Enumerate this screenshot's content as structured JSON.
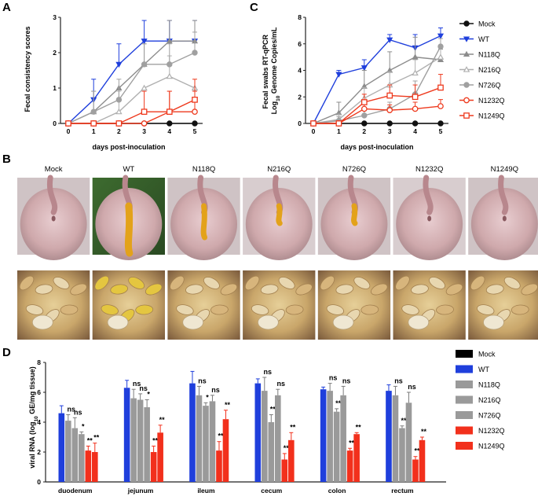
{
  "panels": {
    "A": "A",
    "B": "B",
    "C": "C",
    "D": "D"
  },
  "chart_data": [
    {
      "id": "A",
      "type": "line",
      "title": "",
      "xlabel": "days post-inoculation",
      "ylabel": "Fecal consistency scores",
      "x": [
        0,
        1,
        2,
        3,
        4,
        5
      ],
      "xlim": [
        0,
        5
      ],
      "ylim": [
        0,
        3
      ],
      "yticks": [
        0,
        1,
        2,
        3
      ],
      "series": [
        {
          "name": "Mock",
          "values": [
            0,
            0,
            0,
            0,
            0,
            0
          ],
          "err": [
            0,
            0,
            0,
            0,
            0,
            0
          ],
          "color": "#111111",
          "marker": "circle-filled"
        },
        {
          "name": "WT",
          "values": [
            0,
            0.67,
            1.67,
            2.33,
            2.33,
            2.33
          ],
          "err": [
            0,
            0.58,
            0.58,
            0.58,
            0.58,
            0.58
          ],
          "color": "#1f3fdc",
          "marker": "triangle-down"
        },
        {
          "name": "N118Q",
          "values": [
            0,
            0.33,
            1.0,
            1.67,
            2.33,
            2.33
          ],
          "err": [
            0,
            0.58,
            0.0,
            0.58,
            0.58,
            0.58
          ],
          "color": "#8c8c8c",
          "marker": "triangle-up"
        },
        {
          "name": "N216Q",
          "values": [
            0,
            0,
            0.33,
            1.0,
            1.33,
            1.0
          ],
          "err": [
            0,
            0,
            0.58,
            0.0,
            0.58,
            0.0
          ],
          "color": "#b0b0b0",
          "marker": "triangle-open"
        },
        {
          "name": "N726Q",
          "values": [
            0,
            0.33,
            0.67,
            1.67,
            1.67,
            2.0
          ],
          "err": [
            0,
            0.58,
            0.58,
            0.58,
            0.58,
            0.58
          ],
          "color": "#a0a0a0",
          "marker": "circle-filled"
        },
        {
          "name": "N1232Q",
          "values": [
            0,
            0,
            0,
            0,
            0.33,
            0.33
          ],
          "err": [
            0,
            0,
            0,
            0,
            0.58,
            0.58
          ],
          "color": "#ee3a1e",
          "marker": "circle-open"
        },
        {
          "name": "N1249Q",
          "values": [
            0,
            0,
            0,
            0.33,
            0.33,
            0.67
          ],
          "err": [
            0,
            0,
            0,
            0.58,
            0.58,
            0.58
          ],
          "color": "#ee3a1e",
          "marker": "square-open"
        }
      ]
    },
    {
      "id": "C",
      "type": "line",
      "title": "",
      "xlabel": "days post-inoculation",
      "ylabel_line1": "Fecal swabs RT-qPCR",
      "ylabel_line2_pre": "Log",
      "ylabel_line2_sub": "10",
      "ylabel_line2_post": " Genome Copies/mL",
      "x": [
        0,
        1,
        2,
        3,
        4,
        5
      ],
      "xlim": [
        0,
        5
      ],
      "ylim": [
        0,
        8
      ],
      "yticks": [
        0,
        2,
        4,
        6,
        8
      ],
      "series": [
        {
          "name": "Mock",
          "values": [
            0,
            0,
            0,
            0,
            0,
            0
          ],
          "err": [
            0,
            0,
            0,
            0,
            0,
            0
          ],
          "color": "#111111",
          "marker": "circle-filled"
        },
        {
          "name": "WT",
          "values": [
            0,
            3.7,
            4.2,
            6.3,
            5.7,
            6.6
          ],
          "err": [
            0,
            0.3,
            0.6,
            0.4,
            1.0,
            0.6
          ],
          "color": "#1f3fdc",
          "marker": "triangle-down"
        },
        {
          "name": "N118Q",
          "values": [
            0,
            0.8,
            2.8,
            4.0,
            5.0,
            4.8
          ],
          "err": [
            0,
            0.8,
            1.2,
            1.4,
            1.5,
            0.8
          ],
          "color": "#8c8c8c",
          "marker": "triangle-up"
        },
        {
          "name": "N216Q",
          "values": [
            0,
            0.3,
            1.9,
            2.9,
            3.8,
            5.0
          ],
          "err": [
            0,
            0.4,
            0.8,
            1.0,
            1.0,
            0.9
          ],
          "color": "#b0b0b0",
          "marker": "triangle-open"
        },
        {
          "name": "N726Q",
          "values": [
            0,
            0.2,
            0.6,
            1.1,
            2.2,
            5.8
          ],
          "err": [
            0,
            0.3,
            0.4,
            0.5,
            1.0,
            0.6
          ],
          "color": "#a0a0a0",
          "marker": "circle-filled"
        },
        {
          "name": "N1232Q",
          "values": [
            0,
            0,
            1.1,
            1.0,
            1.1,
            1.3
          ],
          "err": [
            0,
            0,
            0.5,
            0.4,
            0.5,
            0.5
          ],
          "color": "#ee3a1e",
          "marker": "circle-open"
        },
        {
          "name": "N1249Q",
          "values": [
            0,
            0,
            1.6,
            2.1,
            2.0,
            2.7
          ],
          "err": [
            0,
            0,
            0.6,
            0.8,
            0.9,
            1.0
          ],
          "color": "#ee3a1e",
          "marker": "square-open"
        }
      ]
    },
    {
      "id": "D",
      "type": "bar",
      "title": "",
      "ylabel_pre": "viral RNA (log",
      "ylabel_sub": "10",
      "ylabel_post": " GE/mg tissue)",
      "ylim": [
        0,
        8
      ],
      "yticks": [
        0,
        2,
        4,
        6,
        8
      ],
      "categories": [
        "duodenum",
        "jejunum",
        "ileum",
        "cecum",
        "colon",
        "rectum"
      ],
      "series": [
        {
          "name": "Mock",
          "color": "#000000",
          "values": [
            0,
            0,
            0,
            0,
            0,
            0
          ],
          "err": [
            0,
            0,
            0,
            0,
            0,
            0
          ],
          "sig": [
            "",
            "",
            "",
            "",
            "",
            ""
          ]
        },
        {
          "name": "WT",
          "color": "#1f3fdc",
          "values": [
            4.6,
            6.3,
            6.6,
            6.6,
            6.2,
            6.1
          ],
          "err": [
            0.5,
            0.5,
            0.8,
            0.3,
            0.15,
            0.4
          ],
          "sig": [
            "",
            "",
            "",
            "",
            "",
            ""
          ]
        },
        {
          "name": "N118Q",
          "color": "#9a9a9a",
          "values": [
            4.1,
            5.6,
            5.8,
            6.1,
            6.1,
            5.8
          ],
          "err": [
            0.4,
            0.6,
            0.6,
            0.9,
            0.5,
            0.6
          ],
          "sig": [
            "ns",
            "ns",
            "ns",
            "ns",
            "ns",
            "ns"
          ]
        },
        {
          "name": "N216Q",
          "color": "#9a9a9a",
          "values": [
            3.6,
            5.5,
            5.1,
            4.0,
            4.7,
            3.6
          ],
          "err": [
            0.7,
            0.4,
            0.2,
            0.5,
            0.2,
            0.15
          ],
          "sig": [
            "ns",
            "ns",
            "*",
            "**",
            "**",
            "**"
          ]
        },
        {
          "name": "N726Q",
          "color": "#9a9a9a",
          "values": [
            3.2,
            5.0,
            5.4,
            5.8,
            5.8,
            5.3
          ],
          "err": [
            0.15,
            0.5,
            0.4,
            0.4,
            0.6,
            0.7
          ],
          "sig": [
            "*",
            "*",
            "ns",
            "ns",
            "ns",
            "ns"
          ]
        },
        {
          "name": "N1232Q",
          "color": "#f2301c",
          "values": [
            2.1,
            2.0,
            2.1,
            1.5,
            2.1,
            1.5
          ],
          "err": [
            0.3,
            0.4,
            0.6,
            0.4,
            0.15,
            0.2
          ],
          "sig": [
            "**",
            "**",
            "**",
            "**",
            "**",
            "**"
          ]
        },
        {
          "name": "N1249Q",
          "color": "#f2301c",
          "values": [
            2.0,
            3.3,
            4.2,
            2.8,
            3.2,
            2.8
          ],
          "err": [
            0.6,
            0.5,
            0.6,
            0.5,
            0.1,
            0.2
          ],
          "sig": [
            "**",
            "**",
            "**",
            "**",
            "**",
            "**"
          ]
        }
      ]
    }
  ],
  "photo_panel": {
    "labels": [
      "Mock",
      "WT",
      "N118Q",
      "N216Q",
      "N726Q",
      "N1232Q",
      "N1249Q"
    ]
  }
}
